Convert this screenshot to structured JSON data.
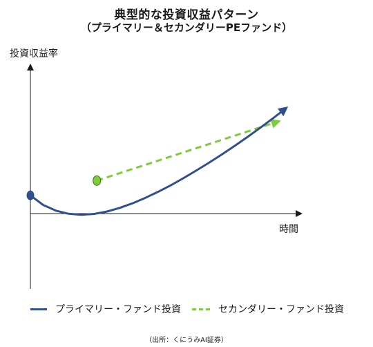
{
  "title": "典型的な投資収益パターン",
  "subtitle": "（プライマリー＆セカンダリーPEファンド）",
  "source": "（出所：くにうみAI証券）",
  "chart_data": {
    "type": "line",
    "ylabel": "投資収益率",
    "xlabel": "時間",
    "grid": false,
    "legend": "bottom",
    "xlim": [
      0,
      10
    ],
    "ylim": [
      -3,
      6
    ],
    "series": [
      {
        "name": "プライマリー・ファンド投資",
        "color": "#2f4f8f",
        "style": "solid",
        "x": [
          0,
          0.5,
          1,
          1.5,
          2,
          2.5,
          3,
          3.5,
          4,
          4.5,
          5,
          5.5,
          6,
          6.5,
          7,
          7.5,
          8,
          8.5,
          9,
          9.5,
          10
        ],
        "y": [
          0,
          -0.58,
          -0.93,
          -1.12,
          -1.18,
          -1.13,
          -0.98,
          -0.76,
          -0.48,
          -0.15,
          0.22,
          0.62,
          1.06,
          1.52,
          2.0,
          2.5,
          3.02,
          3.56,
          4.12,
          4.7,
          5.3
        ]
      },
      {
        "name": "セカンダリー・ファンド投資",
        "color": "#7dcc3a",
        "style": "dashed",
        "x": [
          2.6,
          9.7
        ],
        "y": [
          0.9,
          4.5
        ],
        "start_marker": true
      }
    ]
  }
}
